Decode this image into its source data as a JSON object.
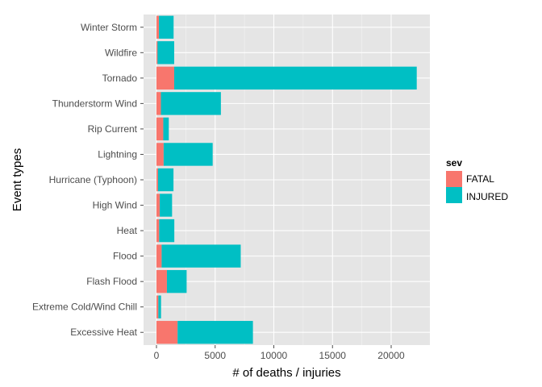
{
  "chart_data": {
    "type": "bar",
    "orientation": "horizontal",
    "stacked": true,
    "categories": [
      "Winter Storm",
      "Wildfire",
      "Tornado",
      "Thunderstorm Wind",
      "Rip Current",
      "Lightning",
      "Hurricane (Typhoon)",
      "High Wind",
      "Heat",
      "Flood",
      "Flash Flood",
      "Extreme Cold/Wind Chill",
      "Excessive Heat"
    ],
    "series": [
      {
        "name": "FATAL",
        "color": "#F8766D",
        "values": [
          210,
          90,
          1510,
          380,
          580,
          610,
          130,
          280,
          230,
          440,
          890,
          160,
          1800
        ]
      },
      {
        "name": "INJURED",
        "color": "#00BFC4",
        "values": [
          1250,
          1420,
          20670,
          5110,
          470,
          4180,
          1320,
          1050,
          1290,
          6740,
          1680,
          230,
          6420
        ]
      }
    ],
    "xlabel": "# of deaths / injuries",
    "ylabel": "Event types",
    "x_ticks": [
      0,
      5000,
      10000,
      15000,
      20000
    ],
    "xlim": [
      -1100,
      23300
    ],
    "grid": true,
    "legend": {
      "title": "sev",
      "position": "right",
      "entries": [
        "FATAL",
        "INJURED"
      ]
    },
    "background_color": "#E5E5E5",
    "grid_color": "#FFFFFF"
  }
}
